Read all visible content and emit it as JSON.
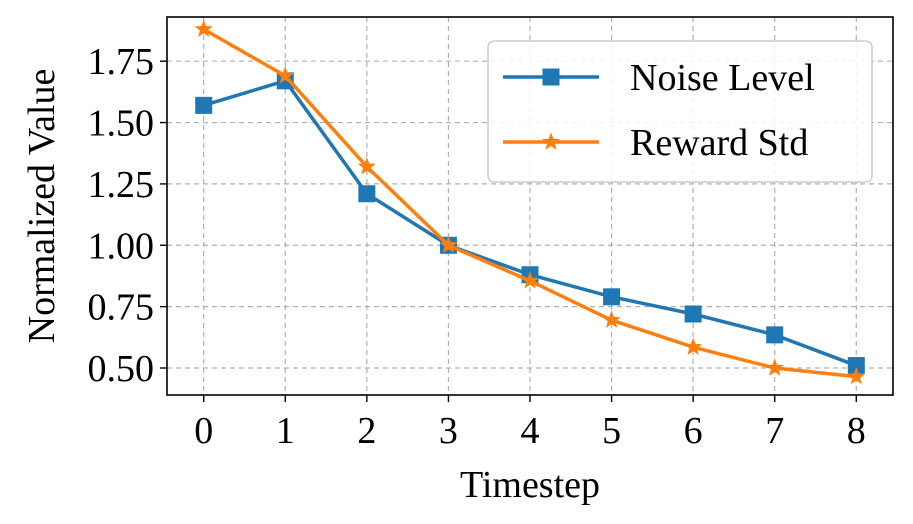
{
  "chart_data": {
    "type": "line",
    "title": "",
    "xlabel": "Timestep",
    "ylabel": "Normalized Value",
    "x": [
      0,
      1,
      2,
      3,
      4,
      5,
      6,
      7,
      8
    ],
    "x_tick_labels": [
      "0",
      "1",
      "2",
      "3",
      "4",
      "5",
      "6",
      "7",
      "8"
    ],
    "xlim": [
      -0.45,
      8.45
    ],
    "ylim": [
      0.39,
      1.93
    ],
    "y_ticks": [
      0.5,
      0.75,
      1.0,
      1.25,
      1.5,
      1.75
    ],
    "y_tick_labels": [
      "0.50",
      "0.75",
      "1.00",
      "1.25",
      "1.50",
      "1.75"
    ],
    "grid": true,
    "legend_position": "top-right",
    "series": [
      {
        "name": "Noise Level",
        "color": "#1f77b4",
        "marker": "square",
        "values": [
          1.57,
          1.67,
          1.21,
          1.0,
          0.88,
          0.79,
          0.72,
          0.635,
          0.51
        ]
      },
      {
        "name": "Reward Std",
        "color": "#ff7f0e",
        "marker": "star",
        "values": [
          1.88,
          1.69,
          1.32,
          1.0,
          0.855,
          0.695,
          0.585,
          0.5,
          0.465
        ]
      }
    ]
  }
}
